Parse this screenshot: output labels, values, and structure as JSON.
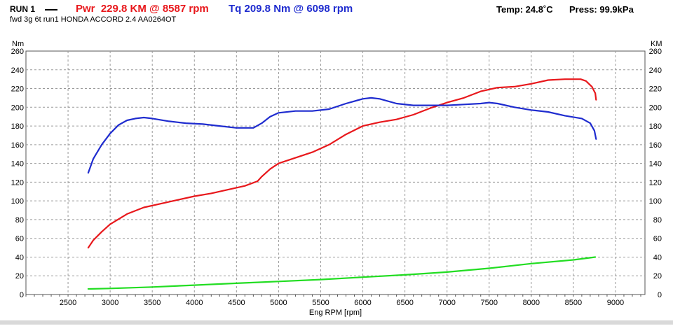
{
  "header": {
    "run": "RUN 1",
    "power": "Pwr  229.8 KM @ 8587 rpm",
    "torque": "Tq 209.8 Nm @ 6098 rpm",
    "temp": "Temp: 24.8˚C",
    "press": "Press: 99.9kPa",
    "subtitle": "fwd 3g 6t run1 HONDA ACCORD 2.4 AA0264OT"
  },
  "colors": {
    "power": "#e8181c",
    "torque": "#1f2ccf",
    "loss": "#22dd22",
    "grid": "#9a9a9a"
  },
  "chart_data": {
    "type": "line",
    "xlabel": "Eng RPM [rpm]",
    "ylabel_left": "Nm",
    "ylabel_right": "KM",
    "xlim": [
      2000,
      9350
    ],
    "ylim": [
      0,
      260
    ],
    "x_ticks": [
      2500,
      3000,
      3500,
      4000,
      4500,
      5000,
      5500,
      6000,
      6500,
      7000,
      7500,
      8000,
      8500,
      9000
    ],
    "y_ticks": [
      0,
      20,
      40,
      60,
      80,
      100,
      120,
      140,
      160,
      180,
      200,
      220,
      240,
      260
    ],
    "grid": true,
    "series": [
      {
        "name": "Pwr",
        "color": "#e8181c",
        "points": [
          [
            2740,
            50
          ],
          [
            2800,
            58
          ],
          [
            2900,
            67
          ],
          [
            3000,
            75
          ],
          [
            3200,
            86
          ],
          [
            3400,
            93
          ],
          [
            3600,
            97
          ],
          [
            3800,
            101
          ],
          [
            4000,
            105
          ],
          [
            4200,
            108
          ],
          [
            4400,
            112
          ],
          [
            4600,
            116
          ],
          [
            4750,
            121
          ],
          [
            4800,
            126
          ],
          [
            4900,
            134
          ],
          [
            5000,
            140
          ],
          [
            5200,
            146
          ],
          [
            5400,
            152
          ],
          [
            5600,
            160
          ],
          [
            5800,
            171
          ],
          [
            6000,
            180
          ],
          [
            6200,
            184
          ],
          [
            6400,
            187
          ],
          [
            6600,
            192
          ],
          [
            6800,
            199
          ],
          [
            7000,
            205
          ],
          [
            7200,
            210
          ],
          [
            7400,
            217
          ],
          [
            7600,
            221
          ],
          [
            7800,
            222
          ],
          [
            8000,
            225
          ],
          [
            8200,
            229
          ],
          [
            8400,
            230
          ],
          [
            8587,
            230
          ],
          [
            8650,
            228
          ],
          [
            8720,
            222
          ],
          [
            8760,
            215
          ],
          [
            8770,
            208
          ]
        ]
      },
      {
        "name": "Tq",
        "color": "#1f2ccf",
        "points": [
          [
            2740,
            130
          ],
          [
            2800,
            145
          ],
          [
            2900,
            160
          ],
          [
            3000,
            172
          ],
          [
            3100,
            181
          ],
          [
            3200,
            186
          ],
          [
            3300,
            188
          ],
          [
            3400,
            189
          ],
          [
            3500,
            188
          ],
          [
            3700,
            185
          ],
          [
            3900,
            183
          ],
          [
            4100,
            182
          ],
          [
            4300,
            180
          ],
          [
            4500,
            178
          ],
          [
            4700,
            178
          ],
          [
            4800,
            183
          ],
          [
            4900,
            190
          ],
          [
            5000,
            194
          ],
          [
            5200,
            196
          ],
          [
            5400,
            196
          ],
          [
            5600,
            198
          ],
          [
            5800,
            204
          ],
          [
            6000,
            209
          ],
          [
            6098,
            210
          ],
          [
            6200,
            209
          ],
          [
            6400,
            204
          ],
          [
            6600,
            202
          ],
          [
            6800,
            202
          ],
          [
            7000,
            202
          ],
          [
            7200,
            203
          ],
          [
            7400,
            204
          ],
          [
            7500,
            205
          ],
          [
            7600,
            204
          ],
          [
            7800,
            200
          ],
          [
            8000,
            197
          ],
          [
            8200,
            195
          ],
          [
            8400,
            191
          ],
          [
            8600,
            188
          ],
          [
            8700,
            183
          ],
          [
            8750,
            175
          ],
          [
            8770,
            166
          ]
        ]
      },
      {
        "name": "",
        "color": "#22dd22",
        "points": [
          [
            2740,
            6
          ],
          [
            3000,
            6.5
          ],
          [
            3500,
            8
          ],
          [
            4000,
            10
          ],
          [
            4500,
            12
          ],
          [
            5000,
            14
          ],
          [
            5500,
            16
          ],
          [
            6000,
            18.5
          ],
          [
            6500,
            21
          ],
          [
            7000,
            24
          ],
          [
            7500,
            28
          ],
          [
            8000,
            33
          ],
          [
            8500,
            37
          ],
          [
            8760,
            40
          ]
        ]
      }
    ]
  }
}
